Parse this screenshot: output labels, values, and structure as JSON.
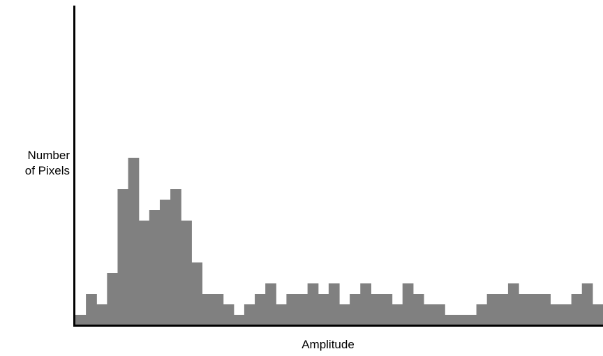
{
  "chart_data": {
    "type": "bar",
    "ylabel_line1": "Number",
    "ylabel_line2": "of Pixels",
    "xlabel": "Amplitude",
    "bar_color": "#808080",
    "axis_color": "#000000",
    "ylim": [
      0,
      30
    ],
    "values": [
      1,
      3,
      2,
      5,
      13,
      16,
      10,
      11,
      12,
      13,
      10,
      6,
      3,
      3,
      2,
      1,
      2,
      3,
      4,
      2,
      3,
      3,
      4,
      3,
      4,
      2,
      3,
      4,
      3,
      3,
      2,
      4,
      3,
      2,
      2,
      1,
      1,
      1,
      2,
      3,
      3,
      4,
      3,
      3,
      3,
      2,
      2,
      3,
      4,
      2
    ]
  }
}
